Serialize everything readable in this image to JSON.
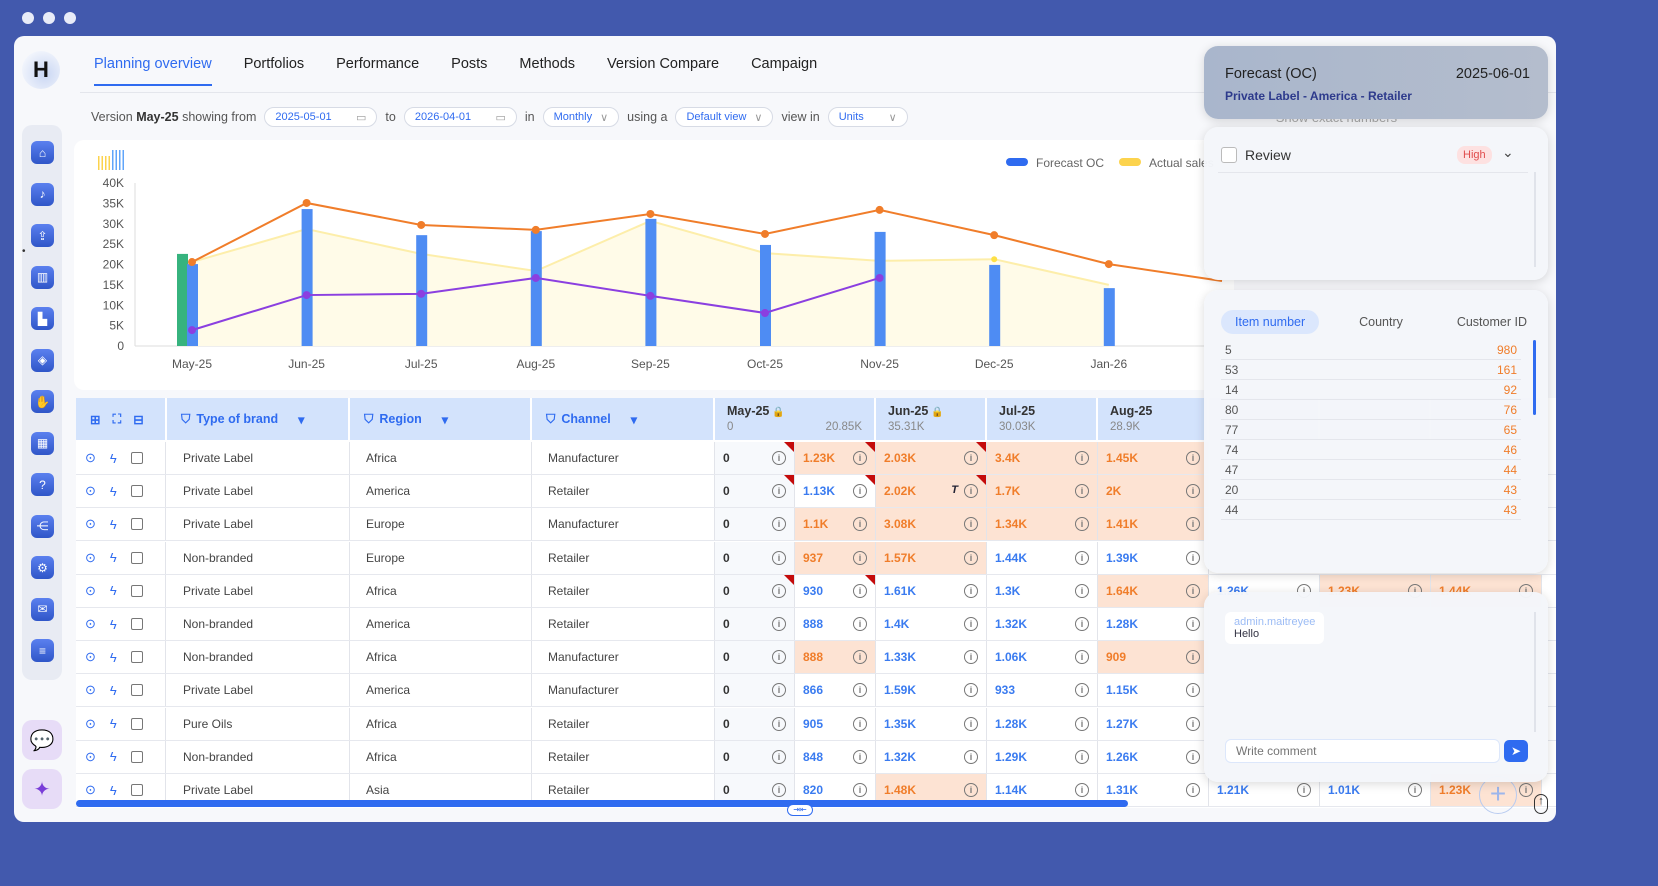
{
  "nav": {
    "tabs": [
      "Planning overview",
      "Portfolios",
      "Performance",
      "Posts",
      "Methods",
      "Version Compare",
      "Campaign"
    ],
    "active": 0
  },
  "logo": "H",
  "sidebar": {
    "icons": [
      "home-icon",
      "bell-icon",
      "user-upload-icon",
      "bar-chart-icon",
      "factory-icon",
      "tag-icon",
      "hand-icon",
      "calendar-icon",
      "help-icon",
      "hierarchy-icon",
      "settings-icon",
      "mail-icon",
      "layers-icon"
    ]
  },
  "toolbar": {
    "version_prefix": "Version",
    "version": "May-25",
    "showing_from": "showing from",
    "from_date": "2025-05-01",
    "to": "to",
    "to_date": "2026-04-01",
    "in": "in",
    "period": "Monthly",
    "using_a": "using a",
    "view": "Default view",
    "view_in": "view in",
    "unit": "Units",
    "show_exact": "Show exact numbers"
  },
  "chart_data": {
    "type": "bar",
    "categories": [
      "May-25",
      "Jun-25",
      "Jul-25",
      "Aug-25",
      "Sep-25",
      "Oct-25",
      "Nov-25",
      "Dec-25",
      "Jan-26"
    ],
    "ylim": [
      0,
      40000
    ],
    "yticks": [
      "0",
      "5K",
      "10K",
      "15K",
      "20K",
      "25K",
      "30K",
      "35K",
      "40K"
    ],
    "legend": [
      "Forecast OC",
      "Actual sales"
    ],
    "legend_position": "top-right",
    "series": [
      {
        "name": "Forecast OC",
        "kind": "bar",
        "color": "#4e8cf3",
        "values": [
          20100,
          33600,
          27200,
          28200,
          31200,
          24800,
          28000,
          19900,
          14200
        ]
      },
      {
        "kind": "bar",
        "color": "#36b37e",
        "values": [
          22600,
          null,
          null,
          null,
          null,
          null,
          null,
          null,
          null
        ]
      },
      {
        "name": "Actual sales",
        "kind": "area",
        "color": "#fde68a",
        "values": [
          20600,
          28700,
          22600,
          18400,
          30700,
          22800,
          20900,
          21300,
          15000
        ]
      },
      {
        "kind": "line",
        "color": "#f07d2a",
        "values": [
          20600,
          35100,
          29700,
          28500,
          32400,
          27500,
          33400,
          27200,
          20100
        ]
      },
      {
        "kind": "line",
        "color": "#8b3fe0",
        "values": [
          3900,
          12500,
          12800,
          16700,
          12300,
          8100,
          16700,
          null,
          null
        ]
      }
    ]
  },
  "table": {
    "headers": {
      "brand": "Type of brand",
      "region": "Region",
      "channel": "Channel"
    },
    "months": [
      {
        "label": "May-25",
        "locked": true,
        "sub1": "0",
        "sub2": "20.85K"
      },
      {
        "label": "Jun-25",
        "locked": true,
        "sub1": "35.31K"
      },
      {
        "label": "Jul-25",
        "sub1": "30.03K"
      },
      {
        "label": "Aug-25",
        "sub1": "28.9K"
      }
    ],
    "rows": [
      {
        "brand": "Private Label",
        "region": "Africa",
        "channel": "Manufacturer",
        "vals": [
          [
            "0",
            "z",
            1
          ],
          [
            "1.23K",
            "o",
            1
          ],
          [
            "2.03K",
            "o",
            1
          ],
          [
            "3.4K",
            "o"
          ],
          [
            "1.45K",
            "o"
          ]
        ]
      },
      {
        "brand": "Private Label",
        "region": "America",
        "channel": "Retailer",
        "vals": [
          [
            "0",
            "z",
            1
          ],
          [
            "1.13K",
            "b",
            1
          ],
          [
            "2.02K",
            "o",
            1,
            "T"
          ],
          [
            "1.7K",
            "o"
          ],
          [
            "2K",
            "o"
          ]
        ]
      },
      {
        "brand": "Private Label",
        "region": "Europe",
        "channel": "Manufacturer",
        "vals": [
          [
            "0",
            "z"
          ],
          [
            "1.1K",
            "o"
          ],
          [
            "3.08K",
            "o"
          ],
          [
            "1.34K",
            "o"
          ],
          [
            "1.41K",
            "o"
          ]
        ]
      },
      {
        "brand": "Non-branded",
        "region": "Europe",
        "channel": "Retailer",
        "vals": [
          [
            "0",
            "z"
          ],
          [
            "937",
            "o"
          ],
          [
            "1.57K",
            "o"
          ],
          [
            "1.44K",
            "b"
          ],
          [
            "1.39K",
            "b"
          ]
        ]
      },
      {
        "brand": "Private Label",
        "region": "Africa",
        "channel": "Retailer",
        "vals": [
          [
            "0",
            "z",
            1
          ],
          [
            "930",
            "b",
            1
          ],
          [
            "1.61K",
            "b"
          ],
          [
            "1.3K",
            "b"
          ],
          [
            "1.64K",
            "o"
          ],
          [
            "1.26K",
            "b"
          ],
          [
            "1.23K",
            "o"
          ],
          [
            "1.44K",
            "o"
          ]
        ]
      },
      {
        "brand": "Non-branded",
        "region": "America",
        "channel": "Retailer",
        "vals": [
          [
            "0",
            "z"
          ],
          [
            "888",
            "b"
          ],
          [
            "1.4K",
            "b"
          ],
          [
            "1.32K",
            "b"
          ],
          [
            "1.28K",
            "b"
          ]
        ]
      },
      {
        "brand": "Non-branded",
        "region": "Africa",
        "channel": "Manufacturer",
        "vals": [
          [
            "0",
            "z"
          ],
          [
            "888",
            "o"
          ],
          [
            "1.33K",
            "b"
          ],
          [
            "1.06K",
            "b"
          ],
          [
            "909",
            "o"
          ]
        ]
      },
      {
        "brand": "Private Label",
        "region": "America",
        "channel": "Manufacturer",
        "vals": [
          [
            "0",
            "z"
          ],
          [
            "866",
            "b"
          ],
          [
            "1.59K",
            "b"
          ],
          [
            "933",
            "b"
          ],
          [
            "1.15K",
            "b"
          ]
        ]
      },
      {
        "brand": "Pure Oils",
        "region": "Africa",
        "channel": "Retailer",
        "vals": [
          [
            "0",
            "z"
          ],
          [
            "905",
            "b"
          ],
          [
            "1.35K",
            "b"
          ],
          [
            "1.28K",
            "b"
          ],
          [
            "1.27K",
            "b"
          ]
        ]
      },
      {
        "brand": "Non-branded",
        "region": "Africa",
        "channel": "Retailer",
        "vals": [
          [
            "0",
            "z"
          ],
          [
            "848",
            "b"
          ],
          [
            "1.32K",
            "b"
          ],
          [
            "1.29K",
            "b"
          ],
          [
            "1.26K",
            "b"
          ]
        ]
      },
      {
        "brand": "Private Label",
        "region": "Asia",
        "channel": "Retailer",
        "vals": [
          [
            "0",
            "z"
          ],
          [
            "820",
            "b"
          ],
          [
            "1.48K",
            "o"
          ],
          [
            "1.14K",
            "b"
          ],
          [
            "1.31K",
            "b"
          ],
          [
            "1.21K",
            "b"
          ],
          [
            "1.01K",
            "b"
          ],
          [
            "1.23K",
            "o"
          ]
        ]
      }
    ]
  },
  "forecast_panel": {
    "title": "Forecast (OC)",
    "date": "2025-06-01",
    "path": "Private Label - America - Retailer"
  },
  "review_panel": {
    "label": "Review",
    "priority": "High"
  },
  "list_panel": {
    "tabs": [
      "Item number",
      "Country",
      "Customer ID"
    ],
    "rows": [
      [
        "5",
        "980"
      ],
      [
        "53",
        "161"
      ],
      [
        "14",
        "92"
      ],
      [
        "80",
        "76"
      ],
      [
        "77",
        "65"
      ],
      [
        "74",
        "46"
      ],
      [
        "47",
        "44"
      ],
      [
        "20",
        "43"
      ],
      [
        "44",
        "43"
      ]
    ]
  },
  "comments": {
    "items": [
      {
        "user": "admin.maitreyee",
        "text": "Hello"
      }
    ],
    "placeholder": "Write comment"
  }
}
